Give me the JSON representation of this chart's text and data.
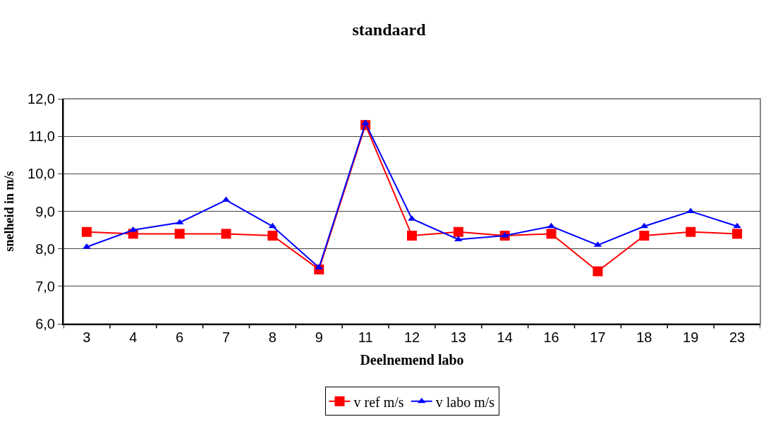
{
  "chart_data": {
    "type": "line",
    "title": "standaard",
    "xlabel": "Deelnemend labo",
    "ylabel": "snelheid in m/s",
    "categories": [
      "3",
      "4",
      "6",
      "7",
      "8",
      "9",
      "11",
      "12",
      "13",
      "14",
      "16",
      "17",
      "18",
      "19",
      "23"
    ],
    "series": [
      {
        "name": "v ref m/s",
        "color": "#ff0000",
        "marker": "square",
        "values": [
          8.45,
          8.4,
          8.4,
          8.4,
          8.35,
          7.45,
          11.3,
          8.35,
          8.45,
          8.35,
          8.4,
          7.4,
          8.35,
          8.45,
          8.4
        ]
      },
      {
        "name": "v labo m/s",
        "color": "#0000ff",
        "marker": "triangle",
        "values": [
          8.05,
          8.5,
          8.7,
          9.3,
          8.6,
          7.5,
          11.35,
          8.8,
          8.25,
          8.35,
          8.6,
          8.1,
          8.6,
          9.0,
          8.6
        ]
      }
    ],
    "ylim": [
      6,
      12
    ],
    "yticks": [
      {
        "value": 6,
        "label": "6,0"
      },
      {
        "value": 7,
        "label": "7,0"
      },
      {
        "value": 8,
        "label": "8,0"
      },
      {
        "value": 9,
        "label": "9,0"
      },
      {
        "value": 10,
        "label": "10,0"
      },
      {
        "value": 11,
        "label": "11,0"
      },
      {
        "value": 12,
        "label": "12,0"
      }
    ],
    "grid": "y",
    "legend": "bottom",
    "line_style": "solid"
  }
}
